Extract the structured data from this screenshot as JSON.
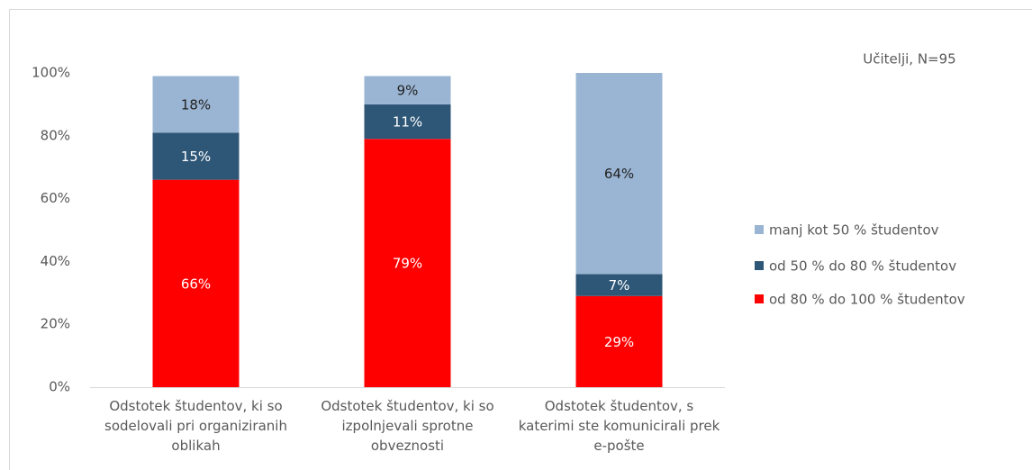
{
  "chart_data": {
    "type": "stacked-bar",
    "annotation": "Učitelji, N=95",
    "categories": [
      "Odstotek študentov, ki so sodelovali pri organiziranih oblikah",
      "Odstotek študentov, ki so izpolnjevali sprotne obveznosti",
      "Odstotek študentov, s katerimi ste komunicirali prek e-pošte"
    ],
    "series": [
      {
        "name": "od 80 % do 100 % študentov",
        "color": "#ff0000",
        "values": [
          66,
          79,
          29
        ],
        "value_labels": [
          "66%",
          "79%",
          "29%"
        ],
        "label_color": "#ffffff"
      },
      {
        "name": "od 50 % do 80 % študentov",
        "color": "#2e5677",
        "values": [
          15,
          11,
          7
        ],
        "value_labels": [
          "15%",
          "11%",
          "7%"
        ],
        "label_color": "#ffffff"
      },
      {
        "name": "manj kot 50 % študentov",
        "color": "#9ab5d3",
        "values": [
          18,
          9,
          64
        ],
        "value_labels": [
          "18%",
          "9%",
          "64%"
        ],
        "label_color": "#222222"
      }
    ],
    "ylim": [
      0,
      100
    ],
    "yticks": [
      {
        "value": 0,
        "label": "0%"
      },
      {
        "value": 20,
        "label": "20%"
      },
      {
        "value": 40,
        "label": "40%"
      },
      {
        "value": 60,
        "label": "60%"
      },
      {
        "value": 80,
        "label": "80%"
      },
      {
        "value": 100,
        "label": "100%"
      }
    ],
    "legend": "right"
  }
}
